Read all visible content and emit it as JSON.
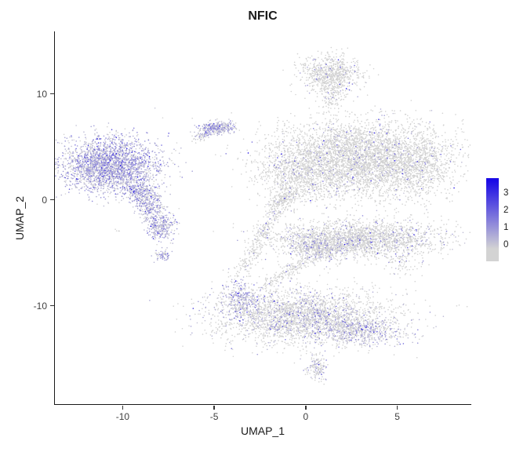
{
  "chart_data": {
    "type": "scatter",
    "title": "NFIC",
    "xlabel": "UMAP_1",
    "ylabel": "UMAP_2",
    "x_range": [
      -13.7,
      9.0
    ],
    "y_range": [
      -19.3,
      15.9
    ],
    "grid": false,
    "point_color_scale": {
      "low": "#D3D3D3",
      "high": "#1A0AE6",
      "vmax": 3.5
    },
    "x_ticks": [
      {
        "v": -10,
        "label": "-10"
      },
      {
        "v": -5,
        "label": "-5"
      },
      {
        "v": 0,
        "label": "0"
      },
      {
        "v": 5,
        "label": "5"
      }
    ],
    "y_ticks": [
      {
        "v": 10,
        "label": "10"
      },
      {
        "v": 0,
        "label": "0"
      },
      {
        "v": -10,
        "label": "-10"
      }
    ],
    "legend": {
      "position": "right",
      "ticks": [
        {
          "label": "3",
          "pos": 0.81
        },
        {
          "label": "2",
          "pos": 0.6
        },
        {
          "label": "1",
          "pos": 0.395
        },
        {
          "label": "0",
          "pos": 0.19
        }
      ]
    },
    "clusters": [
      {
        "name": "left-main",
        "type": "gauss",
        "cx": -10.7,
        "cy": 3.3,
        "sx": 1.35,
        "sy": 1.25,
        "n": 2600,
        "expr": 0.82,
        "emean": 0.55
      },
      {
        "name": "left-tail",
        "type": "strand",
        "x1": -9.3,
        "y1": 1.4,
        "x2": -8.1,
        "y2": -1.6,
        "w": 0.45,
        "n": 550,
        "expr": 0.7,
        "emean": 0.5
      },
      {
        "name": "left-sub",
        "type": "gauss",
        "cx": -7.9,
        "cy": -2.6,
        "sx": 0.4,
        "sy": 0.6,
        "n": 260,
        "expr": 0.72,
        "emean": 0.5
      },
      {
        "name": "left-dot",
        "type": "gauss",
        "cx": -7.8,
        "cy": -5.2,
        "sx": 0.22,
        "sy": 0.3,
        "n": 70,
        "expr": 0.7,
        "emean": 0.5
      },
      {
        "name": "left-outlier",
        "type": "gauss",
        "cx": -10.3,
        "cy": -2.9,
        "sx": 0.07,
        "sy": 0.07,
        "n": 4,
        "expr": 0.1,
        "emean": 0.4
      },
      {
        "name": "small-upper",
        "type": "gauss",
        "cx": -4.8,
        "cy": 6.8,
        "sx": 0.5,
        "sy": 0.28,
        "n": 300,
        "expr": 0.72,
        "emean": 0.5
      },
      {
        "name": "small-upper-tail",
        "type": "strand",
        "x1": -5.3,
        "y1": 6.5,
        "x2": -6.0,
        "y2": 5.7,
        "w": 0.18,
        "n": 70,
        "expr": 0.5,
        "emean": 0.5
      },
      {
        "name": "top",
        "type": "gauss",
        "cx": 1.3,
        "cy": 11.9,
        "sx": 0.8,
        "sy": 0.85,
        "n": 750,
        "expr": 0.07,
        "emean": 0.8
      },
      {
        "name": "top-neck",
        "type": "gauss",
        "cx": 1.45,
        "cy": 9.8,
        "sx": 0.35,
        "sy": 0.75,
        "n": 130,
        "expr": 0.05,
        "emean": 0.8
      },
      {
        "name": "right-main",
        "type": "gauss",
        "cx": 3.0,
        "cy": 3.9,
        "sx": 2.4,
        "sy": 1.8,
        "n": 4300,
        "expr": 0.07,
        "emean": 0.8
      },
      {
        "name": "right-left-lobe",
        "type": "gauss",
        "cx": -0.3,
        "cy": 2.4,
        "sx": 1.1,
        "sy": 1.3,
        "n": 700,
        "expr": 0.06,
        "emean": 0.7
      },
      {
        "name": "right-taper",
        "type": "strand",
        "x1": -0.9,
        "y1": 0.8,
        "x2": -1.7,
        "y2": -0.9,
        "w": 0.35,
        "n": 220,
        "expr": 0.05,
        "emean": 0.7
      },
      {
        "name": "right-east",
        "type": "gauss",
        "cx": 6.2,
        "cy": 3.0,
        "sx": 0.8,
        "sy": 1.6,
        "n": 450,
        "expr": 0.05,
        "emean": 0.7
      },
      {
        "name": "mid-band",
        "type": "gauss",
        "cx": 2.9,
        "cy": -3.7,
        "sx": 2.3,
        "sy": 0.85,
        "n": 2300,
        "expr": 0.13,
        "emean": 0.6
      },
      {
        "name": "mid-band-left",
        "type": "gauss",
        "cx": 0.7,
        "cy": -4.6,
        "sx": 0.8,
        "sy": 0.55,
        "n": 380,
        "expr": 0.3,
        "emean": 0.55
      },
      {
        "name": "mid-right-sparse",
        "type": "gauss",
        "cx": 5.3,
        "cy": -5.8,
        "sx": 0.5,
        "sy": 0.9,
        "n": 90,
        "expr": 0.1,
        "emean": 0.6
      },
      {
        "name": "strand-right-down",
        "type": "strand",
        "x1": -1.6,
        "y1": -1.0,
        "x2": -3.5,
        "y2": -6.8,
        "w": 0.28,
        "n": 270,
        "expr": 0.05,
        "emean": 0.6
      },
      {
        "name": "strand-mid-down",
        "type": "strand",
        "x1": 0.4,
        "y1": -5.4,
        "x2": -2.3,
        "y2": -8.2,
        "w": 0.3,
        "n": 200,
        "expr": 0.08,
        "emean": 0.6
      },
      {
        "name": "bottom-main",
        "type": "gauss",
        "cx": -0.2,
        "cy": -11.0,
        "sx": 2.4,
        "sy": 1.25,
        "n": 2900,
        "expr": 0.2,
        "emean": 0.55
      },
      {
        "name": "bottom-left-edge",
        "type": "gauss",
        "cx": -3.5,
        "cy": -9.4,
        "sx": 0.55,
        "sy": 0.95,
        "n": 320,
        "expr": 0.55,
        "emean": 0.55
      },
      {
        "name": "bottom-right",
        "type": "gauss",
        "cx": 3.0,
        "cy": -12.4,
        "sx": 1.15,
        "sy": 0.7,
        "n": 550,
        "expr": 0.5,
        "emean": 0.55
      },
      {
        "name": "bottom-small",
        "type": "gauss",
        "cx": 0.6,
        "cy": -15.8,
        "sx": 0.28,
        "sy": 0.65,
        "n": 150,
        "expr": 0.3,
        "emean": 0.5
      }
    ]
  }
}
